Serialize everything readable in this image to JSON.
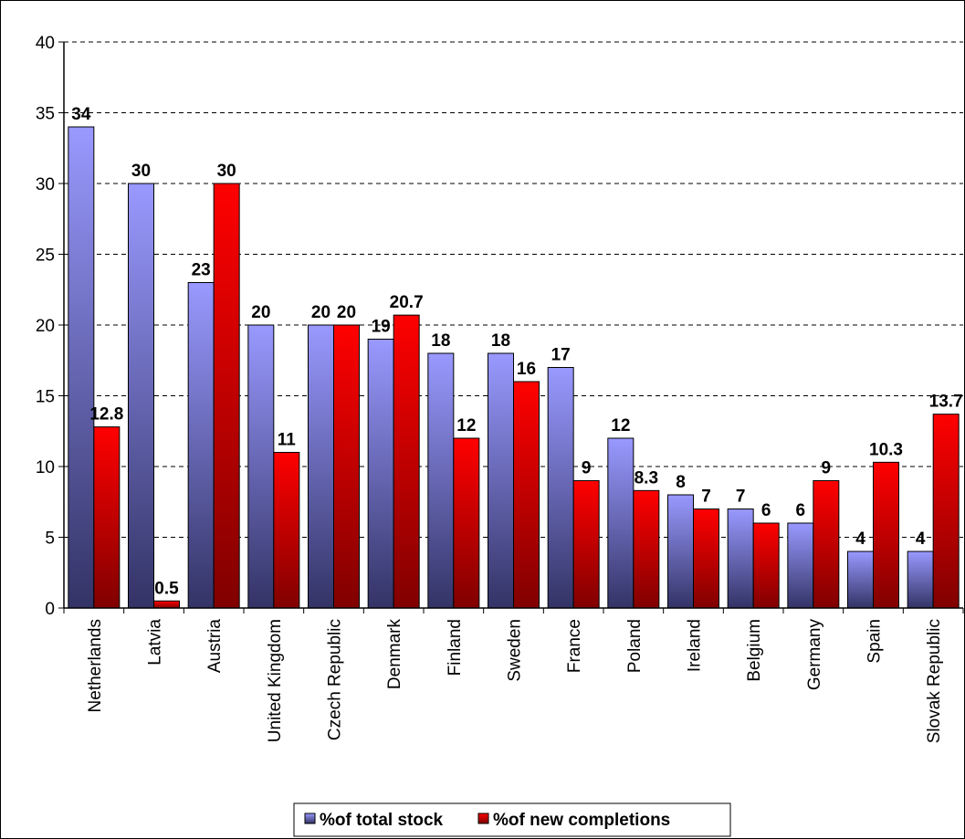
{
  "chart_data": {
    "type": "bar",
    "title": "",
    "xlabel": "",
    "ylabel": "",
    "ylim": [
      0,
      40
    ],
    "yticks": [
      0,
      5,
      10,
      15,
      20,
      25,
      30,
      35,
      40
    ],
    "grid": true,
    "legend_position": "bottom",
    "categories": [
      "Netherlands",
      "Latvia",
      "Austria",
      "United Kingdom",
      "Czech Republic",
      "Denmark",
      "Finland",
      "Sweden",
      "France",
      "Poland",
      "Ireland",
      "Belgium",
      "Germany",
      "Spain",
      "Slovak Republic"
    ],
    "series": [
      {
        "name": "%of total stock",
        "color": "#9999ff",
        "values": [
          34,
          30,
          23,
          20,
          20,
          19,
          18,
          18,
          17,
          12,
          8,
          7,
          6,
          4,
          4
        ],
        "labels": [
          "34",
          "30",
          "23",
          "20",
          "20",
          "19",
          "18",
          "18",
          "17",
          "12",
          "8",
          "7",
          "6",
          "4",
          "4"
        ]
      },
      {
        "name": "%of new completions",
        "color": "#ff0000",
        "values": [
          12.8,
          0.5,
          30,
          11,
          20,
          20.7,
          12,
          16,
          9,
          8.3,
          7,
          6,
          9,
          10.3,
          13.7
        ],
        "labels": [
          "12.8",
          "0.5",
          "30",
          "11",
          "20",
          "20.7",
          "12",
          "16",
          "9",
          "8.3",
          "7",
          "6",
          "9",
          "10.3",
          "13.7"
        ]
      }
    ]
  }
}
